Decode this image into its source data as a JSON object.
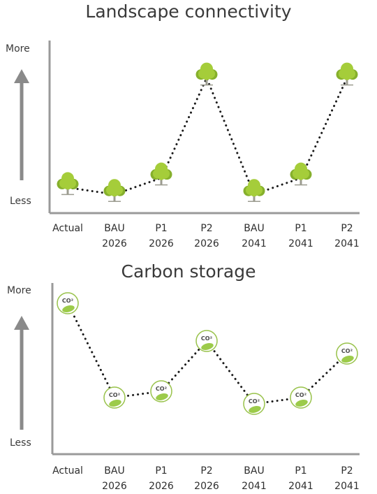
{
  "charts": [
    {
      "title": "Landscape connectivity",
      "y_more_label": "More",
      "y_less_label": "Less",
      "categories": [
        {
          "line1": "Actual",
          "line2": ""
        },
        {
          "line1": "BAU",
          "line2": "2026"
        },
        {
          "line1": "P1",
          "line2": "2026"
        },
        {
          "line1": "P2",
          "line2": "2026"
        },
        {
          "line1": "BAU",
          "line2": "2041"
        },
        {
          "line1": "P1",
          "line2": "2041"
        },
        {
          "line1": "P2",
          "line2": "2041"
        }
      ],
      "values": [
        0.1,
        0.05,
        0.17,
        0.9,
        0.05,
        0.17,
        0.9
      ],
      "marker": "tree-icon"
    },
    {
      "title": "Carbon storage",
      "y_more_label": "More",
      "y_less_label": "Less",
      "categories": [
        {
          "line1": "Actual",
          "line2": ""
        },
        {
          "line1": "BAU",
          "line2": "2026"
        },
        {
          "line1": "P1",
          "line2": "2026"
        },
        {
          "line1": "P2",
          "line2": "2026"
        },
        {
          "line1": "BAU",
          "line2": "2041"
        },
        {
          "line1": "P1",
          "line2": "2041"
        },
        {
          "line1": "P2",
          "line2": "2041"
        }
      ],
      "values": [
        0.95,
        0.2,
        0.25,
        0.65,
        0.15,
        0.2,
        0.55
      ],
      "marker": "co2-icon",
      "marker_text": "CO²"
    }
  ],
  "chart_data": [
    {
      "type": "line",
      "title": "Landscape connectivity",
      "categories": [
        "Actual",
        "BAU 2026",
        "P1 2026",
        "P2 2026",
        "BAU 2041",
        "P1 2041",
        "P2 2041"
      ],
      "series": [
        {
          "values": [
            0.1,
            0.05,
            0.17,
            0.9,
            0.05,
            0.17,
            0.9
          ]
        }
      ],
      "ylabel": "",
      "ylim": [
        0,
        1
      ],
      "y_tick_labels": [
        "Less",
        "More"
      ],
      "grid": false,
      "line_style": "dotted"
    },
    {
      "type": "line",
      "title": "Carbon storage",
      "categories": [
        "Actual",
        "BAU 2026",
        "P1 2026",
        "P2 2026",
        "BAU 2041",
        "P1 2041",
        "P2 2041"
      ],
      "series": [
        {
          "values": [
            0.95,
            0.2,
            0.25,
            0.65,
            0.15,
            0.2,
            0.55
          ]
        }
      ],
      "ylabel": "",
      "ylim": [
        0,
        1
      ],
      "y_tick_labels": [
        "Less",
        "More"
      ],
      "grid": false,
      "line_style": "dotted"
    }
  ],
  "colors": {
    "axis": "#9a9a9a",
    "arrow": "#8a8a8a",
    "line": "#1a1a1a",
    "tree_foliage": "#a5cd3a",
    "tree_foliage_dark": "#86b02c",
    "tree_trunk": "#9c9c90",
    "leaf": "#9ccb4a",
    "circle_stroke": "#98c24a"
  }
}
